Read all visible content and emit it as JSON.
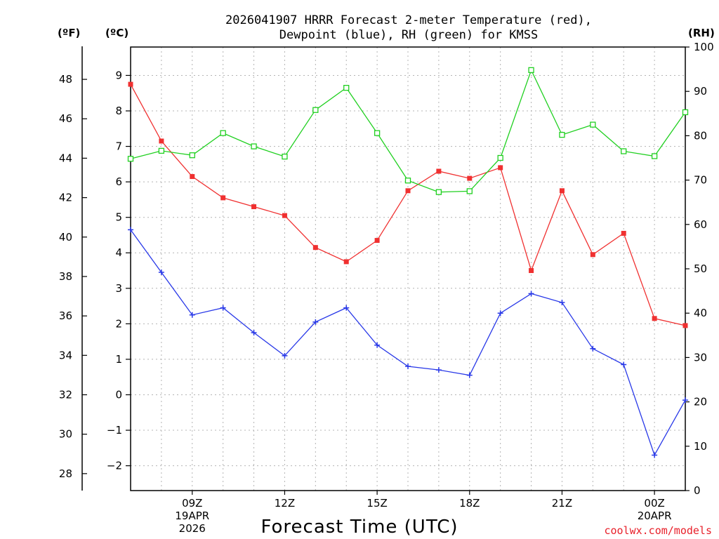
{
  "chart_data": {
    "type": "line",
    "title_lines": [
      "2026041907 HRRR Forecast 2-meter Temperature (red),",
      "Dewpoint (blue), RH (green) for KMSS"
    ],
    "xlabel": "Forecast Time (UTC)",
    "units": {
      "fahrenheit": "(ºF)",
      "celsius": "(ºC)",
      "rh": "(RH)"
    },
    "x_hours": [
      7,
      8,
      9,
      10,
      11,
      12,
      13,
      14,
      15,
      16,
      17,
      18,
      19,
      20,
      21,
      22,
      23,
      24,
      25
    ],
    "x_range": [
      7,
      25
    ],
    "x_ticks": [
      {
        "hour": 9,
        "lines": [
          "09Z",
          "19APR",
          "2026"
        ]
      },
      {
        "hour": 12,
        "lines": [
          "12Z"
        ]
      },
      {
        "hour": 15,
        "lines": [
          "15Z"
        ]
      },
      {
        "hour": 18,
        "lines": [
          "18Z"
        ]
      },
      {
        "hour": 21,
        "lines": [
          "21Z"
        ]
      },
      {
        "hour": 24,
        "lines": [
          "00Z",
          "20APR"
        ]
      }
    ],
    "celsius_axis": {
      "min": -2.7,
      "max": 9.8,
      "ticks": [
        -2,
        -1,
        0,
        1,
        2,
        3,
        4,
        5,
        6,
        7,
        8,
        9
      ],
      "tick_labels": [
        "−2",
        "−1",
        "0",
        "1",
        "2",
        "3",
        "4",
        "5",
        "6",
        "7",
        "8",
        "9"
      ]
    },
    "fahrenheit_axis": {
      "ticks": [
        28,
        30,
        32,
        34,
        36,
        38,
        40,
        42,
        44,
        46,
        48
      ]
    },
    "rh_axis": {
      "min": 0,
      "max": 100,
      "ticks": [
        0,
        10,
        20,
        30,
        40,
        50,
        60,
        70,
        80,
        90,
        100
      ]
    },
    "series": [
      {
        "name": "Temperature",
        "axis": "celsius",
        "color": "#f03030",
        "marker": "filled-square",
        "values": [
          8.75,
          7.15,
          6.15,
          5.55,
          5.3,
          5.05,
          4.15,
          3.75,
          4.35,
          5.75,
          6.3,
          6.1,
          6.4,
          3.5,
          5.75,
          3.95,
          4.55,
          2.15,
          1.95
        ]
      },
      {
        "name": "Dewpoint",
        "axis": "celsius",
        "color": "#2838e8",
        "marker": "plus",
        "values": [
          4.65,
          3.45,
          2.25,
          2.45,
          1.75,
          1.1,
          2.05,
          2.45,
          1.4,
          0.8,
          0.7,
          0.55,
          2.3,
          2.85,
          2.6,
          1.3,
          0.85,
          -1.7,
          -0.15
        ]
      },
      {
        "name": "RH",
        "axis": "rh",
        "color": "#20d020",
        "marker": "open-square",
        "values": [
          74.8,
          76.6,
          75.6,
          80.6,
          77.6,
          75.3,
          85.8,
          90.8,
          80.6,
          69.9,
          67.3,
          67.5,
          75.0,
          94.8,
          80.2,
          82.5,
          76.5,
          75.4,
          85.3
        ]
      }
    ],
    "credit": "coolwx.com/models",
    "grid": true
  }
}
